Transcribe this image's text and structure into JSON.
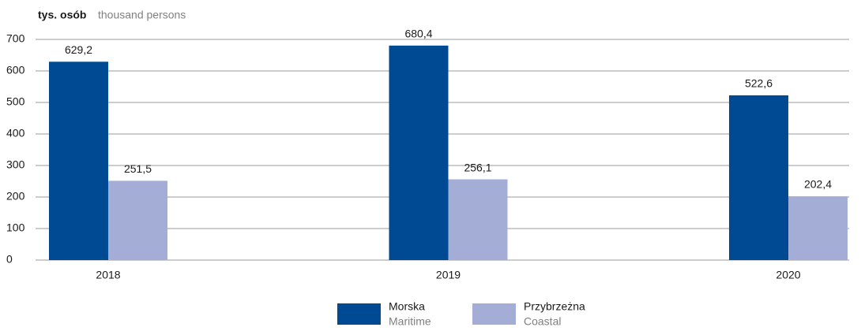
{
  "chart_data": {
    "type": "bar",
    "y_label": "tys. osób",
    "y_label_en": "thousand persons",
    "categories": [
      "2018",
      "2019",
      "2020"
    ],
    "series": [
      {
        "name": "Morska",
        "name_en": "Maritime",
        "color": "#004a93",
        "values": [
          629.2,
          680.4,
          522.6
        ],
        "value_labels": [
          "629,2",
          "680,4",
          "522,6"
        ]
      },
      {
        "name": "Przybrzeżna",
        "name_en": "Coastal",
        "color": "#a4add6",
        "values": [
          251.5,
          256.1,
          202.4
        ],
        "value_labels": [
          "251,5",
          "256,1",
          "202,4"
        ]
      }
    ],
    "ylim": [
      0,
      700
    ],
    "yticks": [
      0,
      100,
      200,
      300,
      400,
      500,
      600,
      700
    ],
    "grid": true
  }
}
